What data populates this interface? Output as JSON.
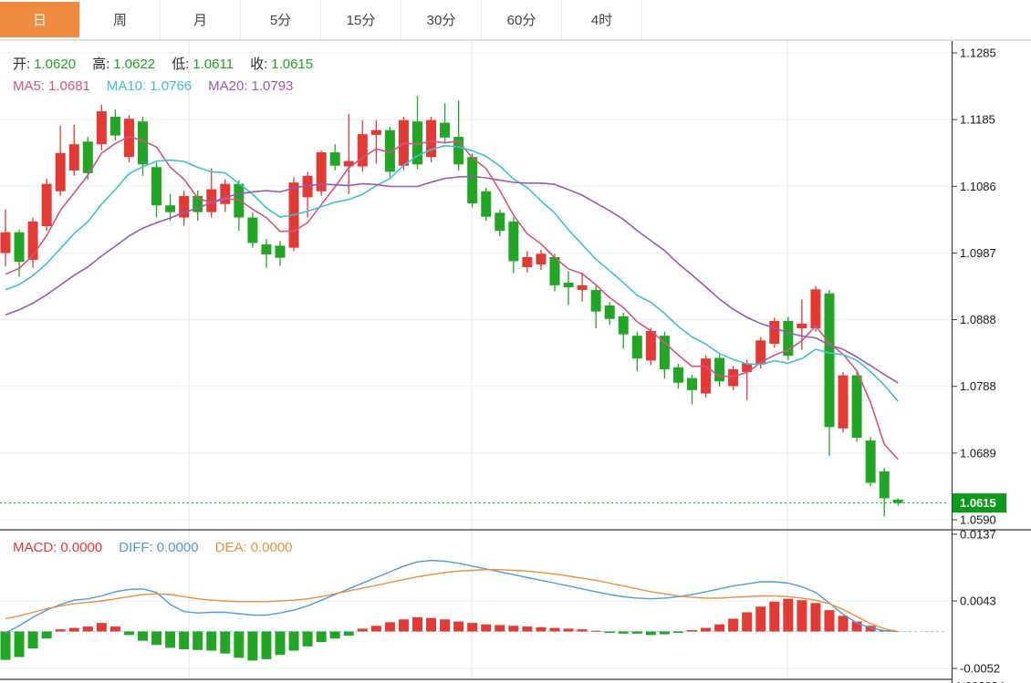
{
  "tab_bar": {
    "tabs": [
      {
        "label": "日",
        "active": true
      },
      {
        "label": "周",
        "active": false
      },
      {
        "label": "月",
        "active": false
      },
      {
        "label": "5分",
        "active": false
      },
      {
        "label": "15分",
        "active": false
      },
      {
        "label": "30分",
        "active": false
      },
      {
        "label": "60分",
        "active": false
      },
      {
        "label": "4时",
        "active": false
      }
    ]
  },
  "legend_main": {
    "items": [
      {
        "label": "开:",
        "value": "1.0620"
      },
      {
        "label": "高:",
        "value": "1.0622"
      },
      {
        "label": "低:",
        "value": "1.0611"
      },
      {
        "label": "收:",
        "value": "1.0615"
      }
    ],
    "value_color": "#21a121"
  },
  "legend_ma": {
    "items": [
      {
        "label": "MA5:",
        "value": "1.0681",
        "color": "#d25683"
      },
      {
        "label": "MA10:",
        "value": "1.0766",
        "color": "#3ec1d3"
      },
      {
        "label": "MA20:",
        "value": "1.0793",
        "color": "#9b59b6"
      }
    ]
  },
  "legend_macd": {
    "items": [
      {
        "label": "MACD:",
        "value": "0.0000",
        "color": "#e03a34"
      },
      {
        "label": "DIFF:",
        "value": "0.0000",
        "color": "#4f9ad8"
      },
      {
        "label": "DEA:",
        "value": "0.0000",
        "color": "#ec8f3c"
      }
    ]
  },
  "price_axis": {
    "ticks": [
      "1.1285",
      "1.1185",
      "1.1086",
      "1.0987",
      "1.0888",
      "1.0788",
      "1.0689",
      "1.0590"
    ],
    "current_price_label": "1.0615",
    "current_price": 1.0615
  },
  "macd_axis": {
    "ticks": [
      "0.0137",
      "0.0043",
      "-0.0052"
    ],
    "clipped_bottom_text": "1.302084"
  },
  "colors": {
    "up": "#e23b35",
    "down": "#23a626",
    "ma5": "#d25683",
    "ma10": "#3ec1d3",
    "ma20": "#9b59b6",
    "diff": "#4f9ad8",
    "dea": "#ec8f3c",
    "active_tab": "#ef8b41",
    "price_badge": "#0a9a1c",
    "dotted_price_line": "#2ca12c",
    "grid": "#ededed",
    "vgrid": "#e7e7e7",
    "axis_line": "#3c3c3c",
    "zero_dash": "#a8cce4",
    "axis_text": "#1a1a1a"
  },
  "chart_data": {
    "type": "candlestick",
    "title": "",
    "xlabel": "",
    "ylabel": "",
    "panels": [
      "price-candles-with-ma",
      "macd"
    ],
    "main": {
      "ylim": [
        1.059,
        1.1285
      ],
      "ma_periods": [
        5,
        10,
        20
      ],
      "ma_seed_history": [
        1.082,
        1.0827,
        1.0834,
        1.0841,
        1.0848,
        1.0854,
        1.0861,
        1.0868,
        1.0875,
        1.0882,
        1.0889,
        1.0896,
        1.0902,
        1.0909,
        1.0916,
        1.0923,
        1.093,
        1.0937,
        1.0943,
        1.095
      ],
      "ohlc": [
        [
          1.0987,
          1.1052,
          1.0967,
          1.1018
        ],
        [
          1.1018,
          1.1022,
          1.0952,
          1.0974
        ],
        [
          1.0977,
          1.104,
          1.0965,
          1.1034
        ],
        [
          1.1027,
          1.1098,
          1.102,
          1.109
        ],
        [
          1.1079,
          1.1177,
          1.1072,
          1.1136
        ],
        [
          1.111,
          1.1178,
          1.1102,
          1.1149
        ],
        [
          1.1153,
          1.116,
          1.1096,
          1.1106
        ],
        [
          1.1149,
          1.1208,
          1.114,
          1.1198
        ],
        [
          1.119,
          1.1201,
          1.1155,
          1.1162
        ],
        [
          1.113,
          1.1192,
          1.1122,
          1.1187
        ],
        [
          1.1183,
          1.119,
          1.1102,
          1.1119
        ],
        [
          1.1115,
          1.1122,
          1.104,
          1.1058
        ],
        [
          1.1058,
          1.1075,
          1.1035,
          1.1048
        ],
        [
          1.104,
          1.108,
          1.1028,
          1.1072
        ],
        [
          1.1072,
          1.108,
          1.1035,
          1.1048
        ],
        [
          1.1048,
          1.1113,
          1.104,
          1.1082
        ],
        [
          1.106,
          1.1097,
          1.1048,
          1.109
        ],
        [
          1.109,
          1.1095,
          1.102,
          1.104
        ],
        [
          1.104,
          1.1048,
          1.0995,
          1.1002
        ],
        [
          1.1,
          1.1008,
          1.0965,
          1.0985
        ],
        [
          1.0998,
          1.1005,
          1.0968,
          1.098
        ],
        [
          1.0995,
          1.11,
          1.099,
          1.1092
        ],
        [
          1.107,
          1.1108,
          1.104,
          1.1102
        ],
        [
          1.1079,
          1.114,
          1.1072,
          1.1137
        ],
        [
          1.1137,
          1.1149,
          1.111,
          1.1117
        ],
        [
          1.1116,
          1.1194,
          1.1075,
          1.1124
        ],
        [
          1.1116,
          1.1185,
          1.1108,
          1.1164
        ],
        [
          1.1163,
          1.1185,
          1.112,
          1.117
        ],
        [
          1.117,
          1.1175,
          1.11,
          1.1108
        ],
        [
          1.1117,
          1.119,
          1.111,
          1.1185
        ],
        [
          1.1183,
          1.1221,
          1.1112,
          1.1119
        ],
        [
          1.113,
          1.119,
          1.1122,
          1.1185
        ],
        [
          1.1181,
          1.121,
          1.115,
          1.1159
        ],
        [
          1.116,
          1.1214,
          1.111,
          1.1119
        ],
        [
          1.113,
          1.1135,
          1.1055,
          1.1061
        ],
        [
          1.1079,
          1.1084,
          1.1035,
          1.1041
        ],
        [
          1.1047,
          1.1052,
          1.1012,
          1.102
        ],
        [
          1.1034,
          1.104,
          1.0957,
          1.0975
        ],
        [
          1.0966,
          1.099,
          1.0958,
          1.0981
        ],
        [
          1.097,
          1.0992,
          1.0962,
          1.0986
        ],
        [
          1.0981,
          1.0986,
          1.093,
          1.0939
        ],
        [
          1.0943,
          1.096,
          1.091,
          1.0936
        ],
        [
          1.0932,
          1.0958,
          1.0915,
          1.0939
        ],
        [
          1.0932,
          1.0938,
          1.0875,
          1.09
        ],
        [
          1.0909,
          1.0914,
          1.088,
          1.0889
        ],
        [
          1.0893,
          1.0898,
          1.0845,
          1.0866
        ],
        [
          1.0864,
          1.087,
          1.0811,
          1.083
        ],
        [
          1.0827,
          1.0876,
          1.082,
          1.0871
        ],
        [
          1.0864,
          1.087,
          1.08,
          1.0814
        ],
        [
          1.0817,
          1.0822,
          1.0785,
          1.0794
        ],
        [
          1.0801,
          1.0806,
          1.0762,
          1.0783
        ],
        [
          1.0778,
          1.0835,
          1.0772,
          1.083
        ],
        [
          1.0831,
          1.0836,
          1.0788,
          1.0796
        ],
        [
          1.0789,
          1.0819,
          1.0783,
          1.0814
        ],
        [
          1.081,
          1.0828,
          1.0768,
          1.0823
        ],
        [
          1.0821,
          1.0862,
          1.0815,
          1.0857
        ],
        [
          1.0852,
          1.0891,
          1.0846,
          1.0886
        ],
        [
          1.0886,
          1.0892,
          1.0828,
          1.0834
        ],
        [
          1.0875,
          1.0918,
          1.0843,
          1.0882
        ],
        [
          1.0875,
          1.0938,
          1.087,
          1.0933
        ],
        [
          1.0927,
          1.0932,
          1.0685,
          1.0728
        ],
        [
          1.0726,
          1.081,
          1.072,
          1.0805
        ],
        [
          1.0805,
          1.081,
          1.0706,
          1.0712
        ],
        [
          1.0708,
          1.0713,
          1.064,
          1.0645
        ],
        [
          1.0662,
          1.0667,
          1.0595,
          1.0622
        ],
        [
          1.062,
          1.0622,
          1.0611,
          1.0615
        ]
      ]
    },
    "macd": {
      "ylim": [
        -0.0069,
        0.0149
      ],
      "histogram": [
        -0.004,
        -0.0036,
        -0.0024,
        -0.001,
        0.0003,
        0.0005,
        0.0007,
        0.0012,
        0.0007,
        -0.0005,
        -0.0013,
        -0.0019,
        -0.0023,
        -0.0025,
        -0.0026,
        -0.0027,
        -0.0031,
        -0.0037,
        -0.0041,
        -0.0039,
        -0.0033,
        -0.0027,
        -0.0021,
        -0.0015,
        -0.001,
        -0.0006,
        0.0004,
        0.0008,
        0.0013,
        0.0017,
        0.002,
        0.0019,
        0.0017,
        0.0014,
        0.0012,
        0.001,
        0.0009,
        0.0008,
        0.0007,
        0.0006,
        0.0005,
        0.0004,
        0.0003,
        0.0001,
        -0.0002,
        -0.0003,
        -0.0003,
        -0.0005,
        -0.0004,
        -0.0002,
        0.0002,
        0.0005,
        0.001,
        0.0018,
        0.0027,
        0.0035,
        0.0042,
        0.0046,
        0.0044,
        0.004,
        0.003,
        0.0022,
        0.0014,
        0.0008,
        0.0002,
        0.0
      ],
      "diff": [
        -0.0002,
        0.0008,
        0.002,
        0.003,
        0.0038,
        0.0044,
        0.0046,
        0.005,
        0.0056,
        0.0059,
        0.006,
        0.0055,
        0.0038,
        0.0028,
        0.0026,
        0.0027,
        0.0027,
        0.0025,
        0.0023,
        0.0023,
        0.0026,
        0.003,
        0.0036,
        0.0044,
        0.0052,
        0.006,
        0.0068,
        0.0076,
        0.0084,
        0.0092,
        0.0098,
        0.01,
        0.0099,
        0.0096,
        0.0092,
        0.0088,
        0.0084,
        0.008,
        0.0076,
        0.0072,
        0.0068,
        0.0064,
        0.006,
        0.0056,
        0.0052,
        0.0049,
        0.0047,
        0.0046,
        0.0047,
        0.0049,
        0.0052,
        0.0056,
        0.006,
        0.0064,
        0.0067,
        0.007,
        0.007,
        0.0068,
        0.0063,
        0.0055,
        0.004,
        0.0024,
        0.0012,
        0.0005,
        0.0001,
        0.0
      ],
      "dea": [
        0.0018,
        0.0022,
        0.0027,
        0.0032,
        0.0036,
        0.0039,
        0.0041,
        0.0043,
        0.0046,
        0.0049,
        0.0052,
        0.0053,
        0.0052,
        0.0049,
        0.0046,
        0.0044,
        0.0043,
        0.0042,
        0.0042,
        0.0042,
        0.0043,
        0.0044,
        0.0046,
        0.0049,
        0.0053,
        0.0057,
        0.0061,
        0.0065,
        0.0069,
        0.0073,
        0.0077,
        0.008,
        0.0083,
        0.0085,
        0.0086,
        0.0087,
        0.0087,
        0.0086,
        0.0085,
        0.0083,
        0.0081,
        0.0078,
        0.0075,
        0.0072,
        0.0068,
        0.0064,
        0.006,
        0.0056,
        0.0053,
        0.005,
        0.0048,
        0.0047,
        0.0047,
        0.0048,
        0.0049,
        0.005,
        0.005,
        0.0049,
        0.0047,
        0.0044,
        0.0039,
        0.0031,
        0.0021,
        0.0011,
        0.0004,
        0.0
      ]
    }
  }
}
